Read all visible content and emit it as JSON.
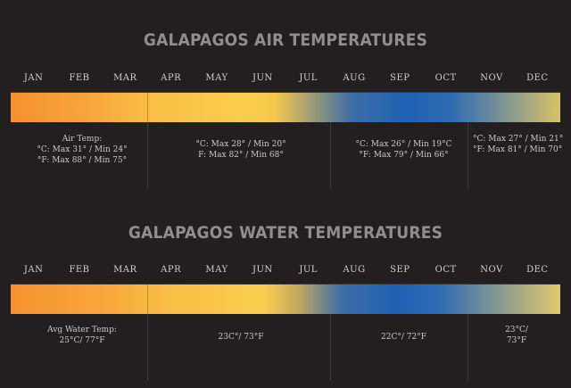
{
  "months": [
    "JAN",
    "FEB",
    "MAR",
    "APR",
    "MAY",
    "JUN",
    "JUL",
    "AUG",
    "SEP",
    "OCT",
    "NOV",
    "DEC"
  ],
  "colors": {
    "background": "#231f20",
    "warm": "#f6912f",
    "mild": "#fbcd4c",
    "cool": "#1f62b4",
    "title": "#8e8e8e"
  },
  "air": {
    "title": "GALAPAGOS AIR TEMPERATURES",
    "info": [
      [
        "Air Temp:",
        "°C: Max 31° / Min 24°",
        "°F: Max 88° / Min 75°"
      ],
      [
        "°C: Max 28° / Min 20°",
        "F: Max 82° / Min 68°"
      ],
      [
        "°C: Max 26° / Min 19°C",
        "°F: Max 79° / Min 66°"
      ],
      [
        "°C: Max 27° / Min 21°",
        "°F: Max 81° / Min 70°"
      ]
    ]
  },
  "water": {
    "title": "GALAPAGOS WATER TEMPERATURES",
    "info": [
      [
        "Avg Water Temp:",
        "25°C/ 77°F"
      ],
      [
        "23C°/ 73°F"
      ],
      [
        "22C°/ 72°F"
      ],
      [
        "23°C/",
        "73°F"
      ]
    ]
  },
  "chart_data": [
    {
      "type": "table",
      "title": "GALAPAGOS AIR TEMPERATURES",
      "categories": [
        "JAN",
        "FEB",
        "MAR",
        "APR",
        "MAY",
        "JUN",
        "JUL",
        "AUG",
        "SEP",
        "OCT",
        "NOV",
        "DEC"
      ],
      "periods": [
        {
          "months": [
            "JAN",
            "FEB",
            "MAR"
          ],
          "max_c": 31,
          "min_c": 24,
          "max_f": 88,
          "min_f": 75
        },
        {
          "months": [
            "APR",
            "MAY",
            "JUN",
            "JUL"
          ],
          "max_c": 28,
          "min_c": 20,
          "max_f": 82,
          "min_f": 68
        },
        {
          "months": [
            "AUG",
            "SEP",
            "OCT"
          ],
          "max_c": 26,
          "min_c": 19,
          "max_f": 79,
          "min_f": 66
        },
        {
          "months": [
            "NOV",
            "DEC"
          ],
          "max_c": 27,
          "min_c": 21,
          "max_f": 81,
          "min_f": 70
        }
      ]
    },
    {
      "type": "table",
      "title": "GALAPAGOS WATER TEMPERATURES",
      "categories": [
        "JAN",
        "FEB",
        "MAR",
        "APR",
        "MAY",
        "JUN",
        "JUL",
        "AUG",
        "SEP",
        "OCT",
        "NOV",
        "DEC"
      ],
      "periods": [
        {
          "months": [
            "JAN",
            "FEB",
            "MAR"
          ],
          "avg_c": 25,
          "avg_f": 77
        },
        {
          "months": [
            "APR",
            "MAY",
            "JUN",
            "JUL"
          ],
          "avg_c": 23,
          "avg_f": 73
        },
        {
          "months": [
            "AUG",
            "SEP",
            "OCT"
          ],
          "avg_c": 22,
          "avg_f": 72
        },
        {
          "months": [
            "NOV",
            "DEC"
          ],
          "avg_c": 23,
          "avg_f": 73
        }
      ]
    }
  ]
}
